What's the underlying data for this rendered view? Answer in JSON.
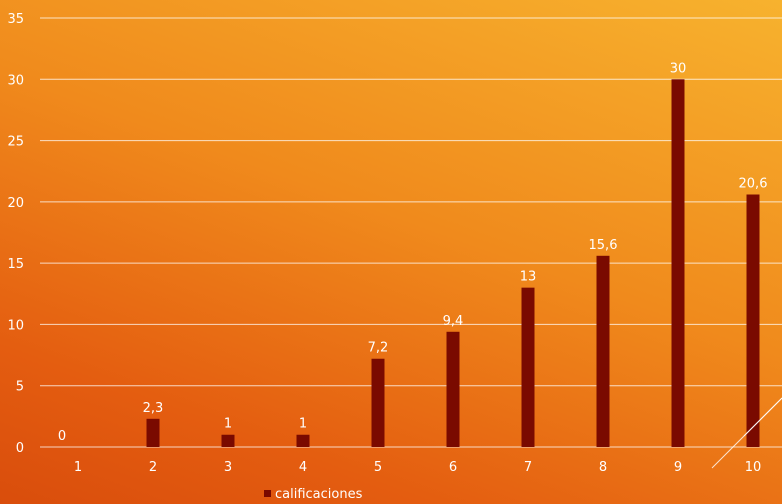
{
  "chart_data": {
    "type": "bar",
    "categories": [
      "1",
      "2",
      "3",
      "4",
      "5",
      "6",
      "7",
      "8",
      "9",
      "10"
    ],
    "series": [
      {
        "name": "calificaciones",
        "values": [
          0,
          2.3,
          1,
          1,
          7.2,
          9.4,
          13,
          15.6,
          30,
          20.6
        ],
        "labels": [
          "0",
          "2,3",
          "1",
          "1",
          "7,2",
          "9,4",
          "13",
          "15,6",
          "30",
          "20,6"
        ],
        "color": "#7a0a00"
      }
    ],
    "y_ticks": [
      "0",
      "5",
      "10",
      "15",
      "20",
      "25",
      "30",
      "35"
    ],
    "ylim": [
      0,
      35
    ],
    "grid": true,
    "legend_position": "bottom"
  }
}
